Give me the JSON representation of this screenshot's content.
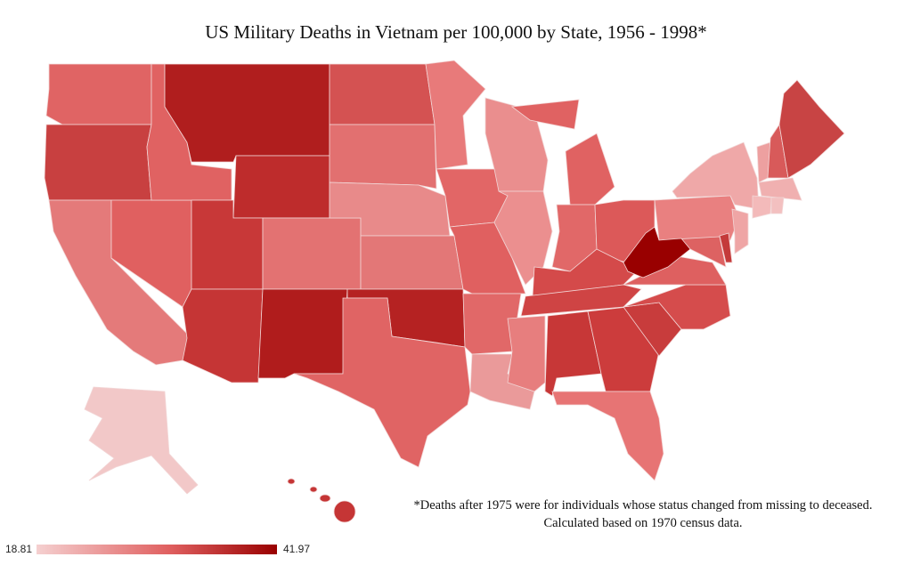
{
  "title": "US Military Deaths in Vietnam per 100,000 by State,  1956 - 1998*",
  "footnote": {
    "line1": "*Deaths after 1975 were for individuals whose status changed from missing to deceased.",
    "line2": "Calculated based on 1970 census data."
  },
  "legend": {
    "min": "18.81",
    "max": "41.97",
    "color_min": "#f5d0d0",
    "color_max": "#990000"
  },
  "state_colors": {
    "WA": "#e06464",
    "OR": "#c84040",
    "CA": "#e47a7a",
    "NV": "#e06060",
    "ID": "#e06262",
    "MT": "#b01e1e",
    "WY": "#be2c2c",
    "UT": "#c83838",
    "CO": "#e37272",
    "AZ": "#c53535",
    "NM": "#b01c1c",
    "ND": "#d45252",
    "SD": "#e27070",
    "NE": "#e88a8a",
    "KS": "#e37777",
    "OK": "#b52222",
    "TX": "#e06464",
    "MN": "#e87a7a",
    "IA": "#e26666",
    "MO": "#e06060",
    "AR": "#e16868",
    "LA": "#ea9a9a",
    "MS": "#e77e7e",
    "WI": "#ea8e8e",
    "IL": "#eb8f8f",
    "MI": "#e06262",
    "IN": "#e16868",
    "OH": "#dc5959",
    "KY": "#d44a4a",
    "TN": "#cf4444",
    "AL": "#c73737",
    "GA": "#cc3c3c",
    "FL": "#e77474",
    "SC": "#c83c3c",
    "NC": "#d54c4c",
    "VA": "#de6060",
    "WV": "#990000",
    "PA": "#e98080",
    "NY": "#efa8a8",
    "MD": "#dd6262",
    "DE": "#c43a3a",
    "NJ": "#efa5a5",
    "VT": "#eda0a0",
    "NH": "#d85a5a",
    "ME": "#c84444",
    "MA": "#f0b0b0",
    "CT": "#f3baba",
    "RI": "#f3c0c0",
    "AK": "#f2c8c8",
    "HI": "#c53535"
  }
}
